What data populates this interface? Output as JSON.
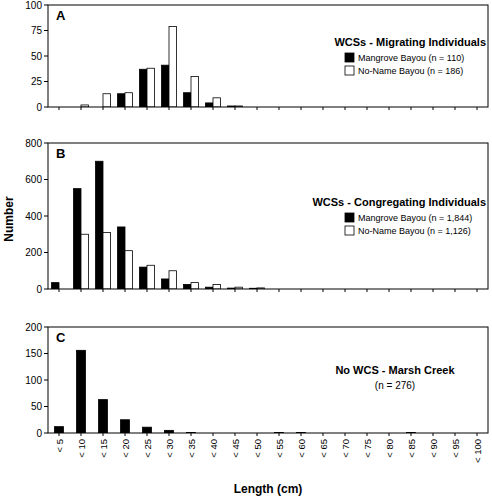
{
  "chart_data": [
    {
      "type": "bar",
      "annotations": [
        "A"
      ],
      "title": "WCSs - Migrating Individuals",
      "categories": [
        "< 5",
        "< 10",
        "< 15",
        "< 20",
        "< 25",
        "< 30",
        "< 35",
        "< 40",
        "< 45",
        "< 50",
        "< 55",
        "< 60",
        "< 65",
        "< 70",
        "< 75",
        "< 80",
        "< 85",
        "< 90",
        "< 95",
        "< 100"
      ],
      "series": [
        {
          "name": "Mangrove Bayou (n = 110)",
          "color": "#000000",
          "values": [
            0,
            0,
            0,
            13,
            37,
            41,
            14,
            4,
            1,
            0,
            0,
            0,
            0,
            0,
            0,
            0,
            0,
            0,
            0,
            0
          ]
        },
        {
          "name": "No-Name Bayou (n = 186)",
          "color": "#ffffff",
          "values": [
            0,
            2,
            13,
            14,
            38,
            79,
            30,
            9,
            1,
            0,
            0,
            0,
            0,
            0,
            0,
            0,
            0,
            0,
            0,
            0
          ]
        }
      ],
      "ylim": [
        0,
        100
      ],
      "yticks": [
        0,
        25,
        50,
        75,
        100
      ],
      "legend": "right",
      "tick_labels": "y"
    },
    {
      "type": "bar",
      "annotations": [
        "B"
      ],
      "title": "WCSs - Congregating Individuals",
      "y_label": "Number",
      "categories": [
        "< 5",
        "< 10",
        "< 15",
        "< 20",
        "< 25",
        "< 30",
        "< 35",
        "< 40",
        "< 45",
        "< 50",
        "< 55",
        "< 60",
        "< 65",
        "< 70",
        "< 75",
        "< 80",
        "< 85",
        "< 90",
        "< 95",
        "< 100"
      ],
      "series": [
        {
          "name": "Mangrove Bayou (n = 1,844)",
          "color": "#000000",
          "values": [
            35,
            550,
            700,
            340,
            120,
            55,
            25,
            10,
            5,
            4,
            0,
            0,
            0,
            0,
            0,
            0,
            0,
            0,
            0,
            0
          ]
        },
        {
          "name": "No-Name Bayou (n = 1,126)",
          "color": "#ffffff",
          "values": [
            0,
            300,
            310,
            210,
            130,
            100,
            35,
            25,
            10,
            6,
            0,
            0,
            0,
            0,
            0,
            0,
            0,
            0,
            0,
            0
          ]
        }
      ],
      "ylim": [
        0,
        800
      ],
      "yticks": [
        0,
        200,
        400,
        600,
        800
      ],
      "legend": "right",
      "tick_labels": "y"
    },
    {
      "type": "bar",
      "annotations": [
        "C"
      ],
      "title": "No WCS - Marsh Creek",
      "subtitle": "(n = 276)",
      "x_label": "Length (cm)",
      "categories": [
        "< 5",
        "< 10",
        "< 15",
        "< 20",
        "< 25",
        "< 30",
        "< 35",
        "< 40",
        "< 45",
        "< 50",
        "< 55",
        "< 60",
        "< 65",
        "< 70",
        "< 75",
        "< 80",
        "< 85",
        "< 90",
        "< 95",
        "< 100"
      ],
      "values": [
        12,
        156,
        63,
        25,
        11,
        5,
        1,
        0,
        0,
        0,
        1,
        1,
        0,
        0,
        0,
        0,
        1,
        0,
        0,
        0
      ],
      "color": "#000000",
      "ylim": [
        0,
        200
      ],
      "yticks": [
        0,
        50,
        100,
        150,
        200
      ]
    }
  ]
}
